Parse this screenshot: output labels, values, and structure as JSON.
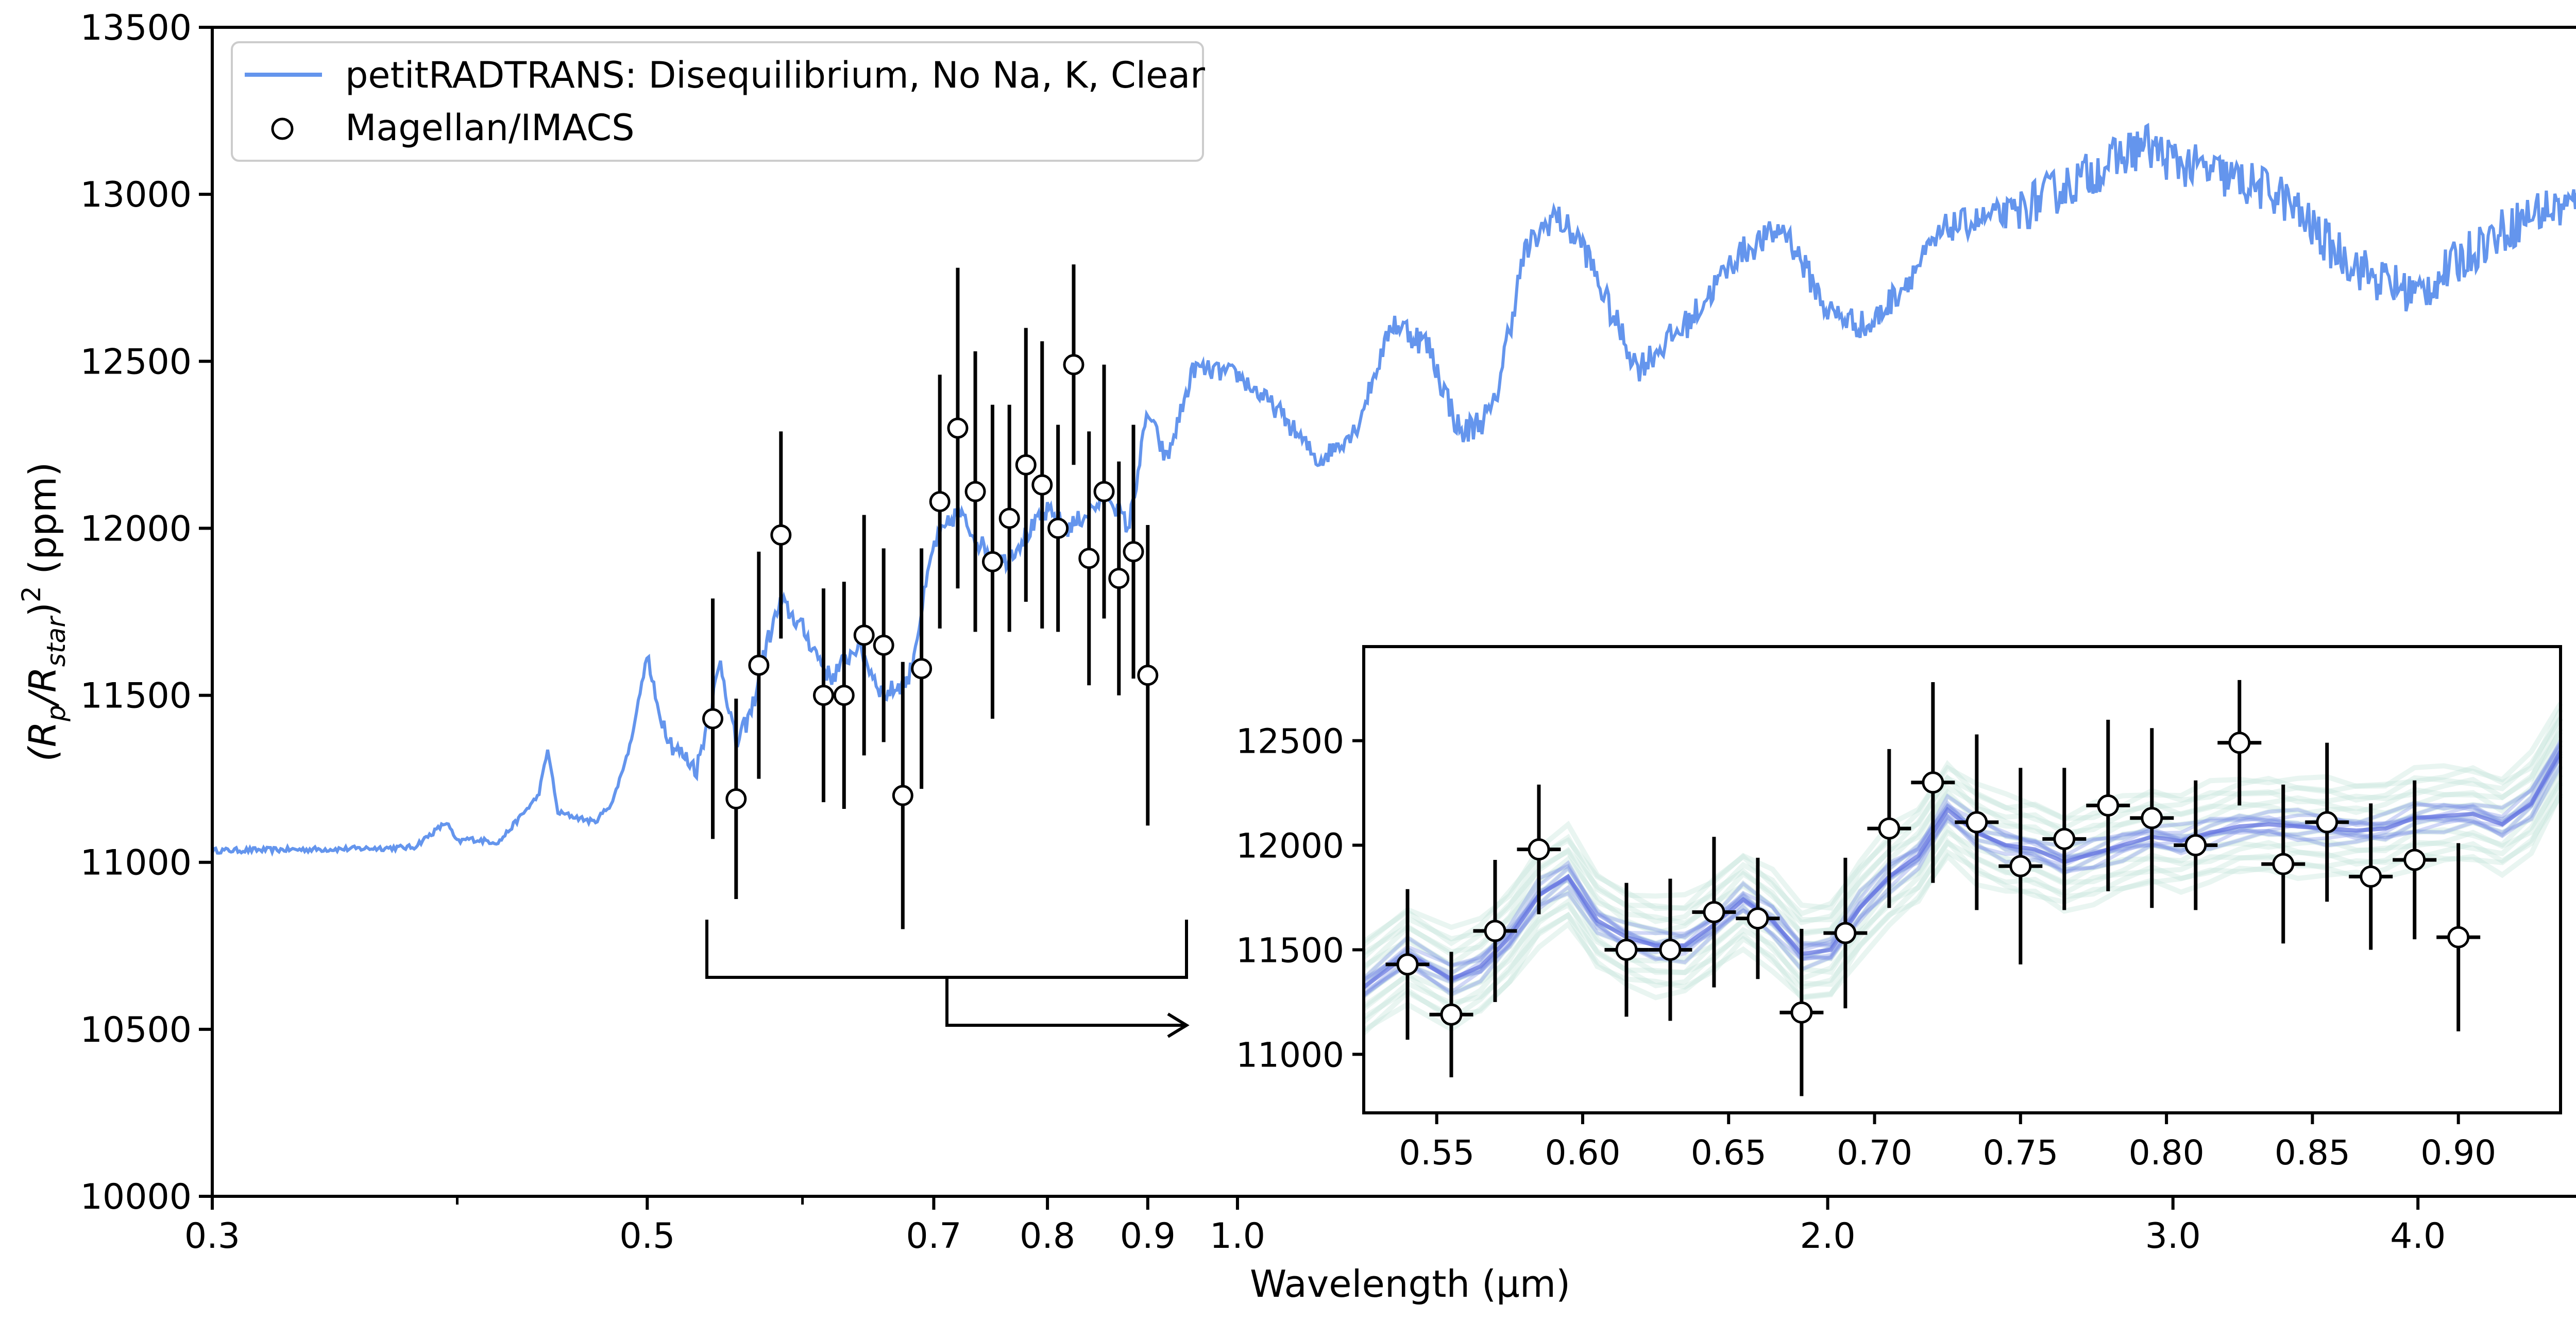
{
  "chart_data": [
    {
      "type": "line",
      "xlabel": "Wavelength (µm)",
      "ylabel_parts": [
        "(R",
        "p",
        "/R",
        "star",
        ")",
        "2",
        " (ppm)"
      ],
      "x_scale": "log",
      "xlim": [
        0.3,
        5.0
      ],
      "ylim": [
        10000,
        13500
      ],
      "x_ticks": [
        0.3,
        0.5,
        0.7,
        0.8,
        0.9,
        1.0,
        2.0,
        3.0,
        4.0
      ],
      "x_tick_labels": [
        "0.3",
        "0.5",
        "0.7",
        "0.8",
        "0.9",
        "1.0",
        "2.0",
        "3.0",
        "4.0"
      ],
      "x_minor_ticks": [
        0.4,
        0.6,
        5.0
      ],
      "y_ticks": [
        10000,
        10500,
        11000,
        11500,
        12000,
        12500,
        13000,
        13500
      ],
      "y_tick_labels": [
        "10000",
        "10500",
        "11000",
        "11500",
        "12000",
        "12500",
        "13000",
        "13500"
      ],
      "legend": {
        "position": "top-left",
        "entries": [
          {
            "label": "petitRADTRANS: Disequilibrium, No Na, K, Clear",
            "marker": "line",
            "color": "#6495ED"
          },
          {
            "label": "Magellan/IMACS",
            "marker": "open-circle",
            "color": "#000000"
          }
        ]
      },
      "series": [
        {
          "name": "petitRADTRANS: Disequilibrium, No Na, K, Clear",
          "color": "#6495ED",
          "x": [
            0.3,
            0.35,
            0.38,
            0.395,
            0.4,
            0.405,
            0.42,
            0.44,
            0.445,
            0.45,
            0.47,
            0.48,
            0.49,
            0.5,
            0.505,
            0.515,
            0.53,
            0.545,
            0.555,
            0.565,
            0.575,
            0.585,
            0.6,
            0.62,
            0.64,
            0.66,
            0.68,
            0.7,
            0.72,
            0.74,
            0.76,
            0.78,
            0.8,
            0.82,
            0.84,
            0.86,
            0.88,
            0.9,
            0.92,
            0.95,
            1.0,
            1.05,
            1.1,
            1.15,
            1.2,
            1.25,
            1.3,
            1.35,
            1.4,
            1.45,
            1.5,
            1.55,
            1.6,
            1.7,
            1.8,
            1.9,
            2.0,
            2.1,
            2.2,
            2.3,
            2.5,
            2.7,
            2.9,
            3.0,
            3.2,
            3.4,
            3.6,
            3.8,
            4.0,
            4.3,
            4.6,
            5.0
          ],
          "y": [
            11035,
            11040,
            11045,
            11120,
            11060,
            11070,
            11060,
            11200,
            11340,
            11150,
            11120,
            11180,
            11350,
            11620,
            11480,
            11350,
            11280,
            11600,
            11350,
            11450,
            11650,
            11780,
            11700,
            11550,
            11650,
            11500,
            11550,
            11950,
            12050,
            11950,
            11900,
            11980,
            12050,
            12000,
            12050,
            12100,
            12000,
            12350,
            12200,
            12480,
            12460,
            12350,
            12200,
            12300,
            12620,
            12550,
            12280,
            12350,
            12820,
            12940,
            12850,
            12650,
            12480,
            12620,
            12820,
            12900,
            12650,
            12600,
            12750,
            12900,
            12950,
            13050,
            13150,
            13100,
            13050,
            13000,
            12850,
            12750,
            12700,
            12850,
            12950,
            12980
          ]
        },
        {
          "name": "Magellan/IMACS",
          "color": "#000000",
          "x": [
            0.54,
            0.555,
            0.57,
            0.585,
            0.615,
            0.63,
            0.645,
            0.66,
            0.675,
            0.69,
            0.705,
            0.72,
            0.735,
            0.75,
            0.765,
            0.78,
            0.795,
            0.81,
            0.825,
            0.84,
            0.855,
            0.87,
            0.885,
            0.9
          ],
          "y": [
            11430,
            11190,
            11590,
            11980,
            11500,
            11500,
            11680,
            11650,
            11200,
            11580,
            12080,
            12300,
            12110,
            11900,
            12030,
            12190,
            12130,
            12000,
            12490,
            11910,
            12110,
            11850,
            11930,
            11560
          ],
          "yerr": [
            360,
            300,
            340,
            310,
            320,
            340,
            360,
            290,
            400,
            360,
            380,
            480,
            420,
            470,
            340,
            410,
            430,
            310,
            300,
            380,
            380,
            350,
            380,
            450
          ]
        }
      ]
    },
    {
      "type": "scatter",
      "note_role": "inset",
      "xlim": [
        0.525,
        0.935
      ],
      "ylim": [
        10720,
        12950
      ],
      "x_ticks": [
        0.55,
        0.6,
        0.65,
        0.7,
        0.75,
        0.8,
        0.85,
        0.9
      ],
      "x_tick_labels": [
        "0.55",
        "0.60",
        "0.65",
        "0.70",
        "0.75",
        "0.80",
        "0.85",
        "0.90"
      ],
      "y_ticks": [
        11000,
        11500,
        12000,
        12500
      ],
      "y_tick_labels": [
        "11000",
        "11500",
        "12000",
        "12500"
      ],
      "band_color": "#7B8BE8",
      "band_spread_color": "#BFE3D8",
      "band_model": {
        "x": [
          0.525,
          0.54,
          0.555,
          0.565,
          0.575,
          0.585,
          0.595,
          0.605,
          0.615,
          0.625,
          0.635,
          0.645,
          0.655,
          0.665,
          0.675,
          0.685,
          0.695,
          0.705,
          0.715,
          0.725,
          0.735,
          0.745,
          0.755,
          0.765,
          0.775,
          0.785,
          0.795,
          0.805,
          0.815,
          0.825,
          0.835,
          0.845,
          0.855,
          0.865,
          0.875,
          0.885,
          0.895,
          0.905,
          0.915,
          0.925,
          0.935
        ],
        "y": [
          11320,
          11480,
          11360,
          11420,
          11560,
          11760,
          11850,
          11640,
          11560,
          11520,
          11520,
          11620,
          11740,
          11640,
          11480,
          11500,
          11700,
          11850,
          11950,
          12170,
          12060,
          12000,
          11980,
          11920,
          11960,
          12000,
          12040,
          12020,
          12060,
          12090,
          12100,
          12090,
          12080,
          12070,
          12080,
          12130,
          12140,
          12150,
          12100,
          12200,
          12450
        ]
      },
      "points": {
        "x": [
          0.54,
          0.555,
          0.57,
          0.585,
          0.615,
          0.63,
          0.645,
          0.66,
          0.675,
          0.69,
          0.705,
          0.72,
          0.735,
          0.75,
          0.765,
          0.78,
          0.795,
          0.81,
          0.825,
          0.84,
          0.855,
          0.87,
          0.885,
          0.9
        ],
        "y": [
          11430,
          11190,
          11590,
          11980,
          11500,
          11500,
          11680,
          11650,
          11200,
          11580,
          12080,
          12300,
          12110,
          11900,
          12030,
          12190,
          12130,
          12000,
          12490,
          11910,
          12110,
          11850,
          11930,
          11560
        ],
        "yerr": [
          360,
          300,
          340,
          310,
          320,
          340,
          360,
          290,
          400,
          360,
          380,
          480,
          420,
          470,
          340,
          410,
          430,
          310,
          300,
          380,
          380,
          350,
          380,
          450
        ],
        "xerr": 0.0075
      }
    }
  ]
}
